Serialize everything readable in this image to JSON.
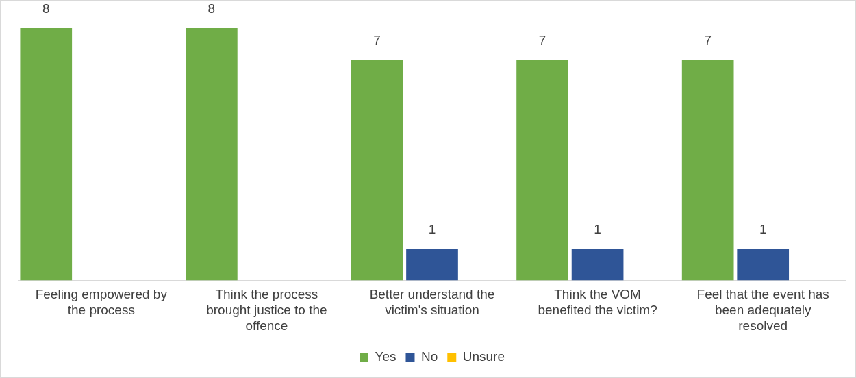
{
  "chart_data": {
    "type": "bar",
    "categories": [
      "Feeling empowered by the process",
      "Think the process brought justice to the offence",
      "Better understand the victim's situation",
      "Think the VOM benefited the victim?",
      "Feel that the event has been adequately resolved"
    ],
    "series": [
      {
        "name": "Yes",
        "color": "#70ad47",
        "values": [
          8,
          8,
          7,
          7,
          7
        ]
      },
      {
        "name": "No",
        "color": "#2f5597",
        "values": [
          null,
          null,
          1,
          1,
          1
        ]
      },
      {
        "name": "Unsure",
        "color": "#ffc000",
        "values": [
          null,
          null,
          null,
          null,
          null
        ]
      }
    ],
    "data_labels": true,
    "legend": "bottom",
    "grid": false,
    "tick_labels": "x"
  }
}
